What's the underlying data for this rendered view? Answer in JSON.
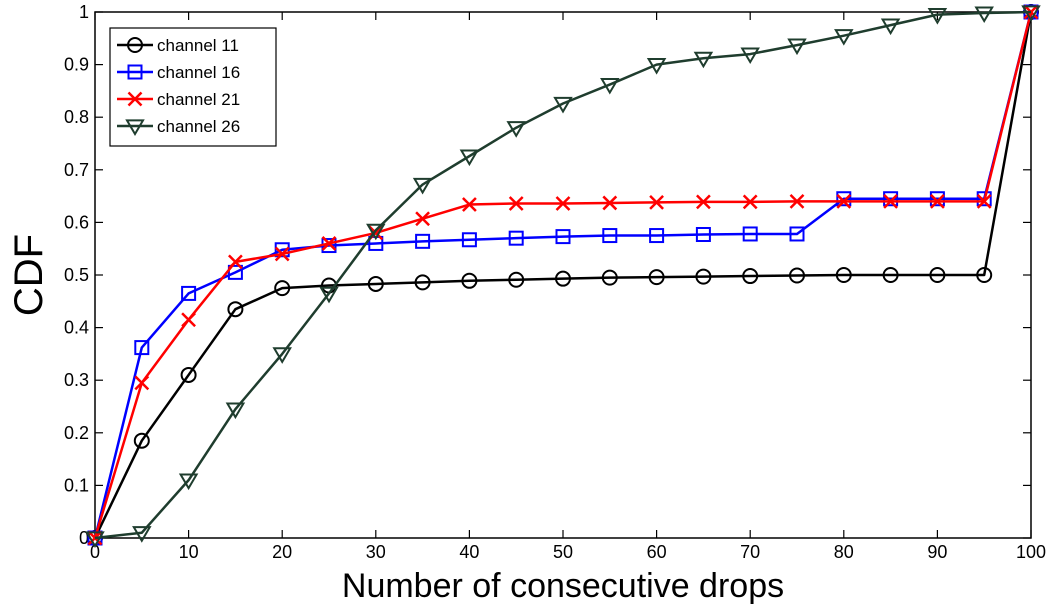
{
  "chart_data": {
    "type": "line",
    "title": "",
    "xlabel": "Number of consecutive drops",
    "ylabel": "CDF",
    "xlim": [
      0,
      100
    ],
    "ylim": [
      0,
      1
    ],
    "xticks": [
      0,
      10,
      20,
      30,
      40,
      50,
      60,
      70,
      80,
      90,
      100
    ],
    "yticks": [
      0,
      0.1,
      0.2,
      0.3,
      0.4,
      0.5,
      0.6,
      0.7,
      0.8,
      0.9,
      1
    ],
    "ytick_labels": [
      "0",
      "0.1",
      "0.2",
      "0.3",
      "0.4",
      "0.5",
      "0.6",
      "0.7",
      "0.8",
      "0.9",
      "1"
    ],
    "grid": false,
    "legend_position": "top-left",
    "x": [
      0,
      5,
      10,
      15,
      20,
      25,
      30,
      35,
      40,
      45,
      50,
      55,
      60,
      65,
      70,
      75,
      80,
      85,
      90,
      95,
      100
    ],
    "series": [
      {
        "name": "channel 11",
        "color": "#000000",
        "marker": "circle",
        "values": [
          0,
          0.185,
          0.31,
          0.435,
          0.475,
          0.48,
          0.483,
          0.486,
          0.489,
          0.491,
          0.493,
          0.495,
          0.496,
          0.497,
          0.498,
          0.499,
          0.5,
          0.5,
          0.5,
          0.5,
          1.0
        ]
      },
      {
        "name": "channel 16",
        "color": "#0000ff",
        "marker": "square",
        "values": [
          0,
          0.362,
          0.465,
          0.505,
          0.548,
          0.556,
          0.56,
          0.564,
          0.567,
          0.57,
          0.573,
          0.575,
          0.575,
          0.577,
          0.578,
          0.578,
          0.645,
          0.645,
          0.645,
          0.645,
          1.0
        ]
      },
      {
        "name": "channel 21",
        "color": "#ff0000",
        "marker": "x",
        "values": [
          0,
          0.295,
          0.415,
          0.525,
          0.54,
          0.56,
          0.58,
          0.607,
          0.634,
          0.636,
          0.636,
          0.637,
          0.638,
          0.639,
          0.639,
          0.64,
          0.64,
          0.64,
          0.64,
          0.64,
          1.0
        ]
      },
      {
        "name": "channel 26",
        "color": "#1f3d2e",
        "marker": "triangle-down",
        "values": [
          0,
          0.01,
          0.11,
          0.245,
          0.35,
          0.465,
          0.585,
          0.672,
          0.726,
          0.78,
          0.826,
          0.862,
          0.9,
          0.912,
          0.92,
          0.937,
          0.955,
          0.975,
          0.995,
          0.998,
          1.0
        ]
      }
    ]
  }
}
